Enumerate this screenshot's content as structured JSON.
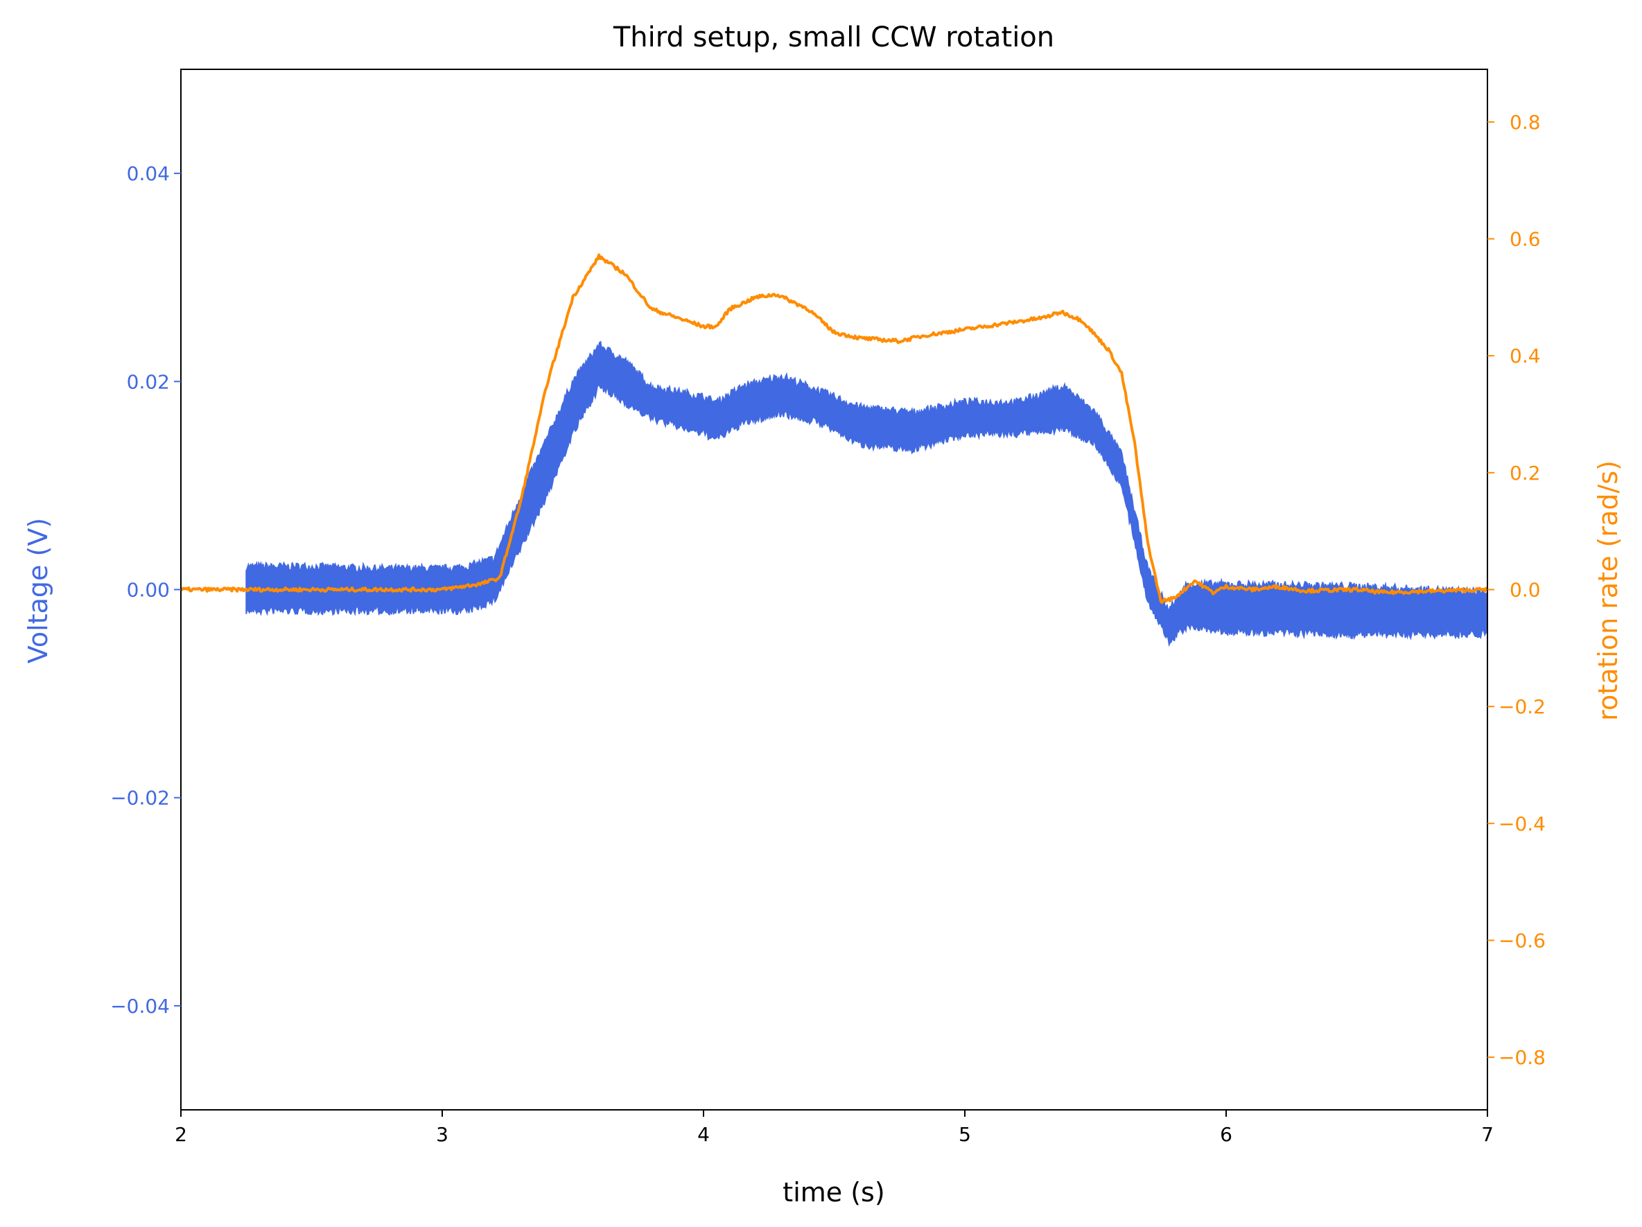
{
  "chart_data": {
    "type": "line",
    "title": "Third setup, small CCW rotation",
    "xlabel": "time (s)",
    "ylabel": "Voltage (V)",
    "ylabel_right": "rotation rate (rad/s)",
    "xlim": [
      2,
      7
    ],
    "ylim": [
      -0.05,
      0.05
    ],
    "ylim_right": [
      -0.89,
      0.89
    ],
    "grid": false,
    "legend": "none",
    "x_ticks": [
      "2",
      "3",
      "4",
      "5",
      "6",
      "7"
    ],
    "x_tick_values": [
      2,
      3,
      4,
      5,
      6,
      7
    ],
    "y_ticks": [
      "0.04",
      "0.02",
      "0.00",
      "−0.02",
      "−0.04"
    ],
    "y_tick_values": [
      0.04,
      0.02,
      0.0,
      -0.02,
      -0.04
    ],
    "y_right_ticks": [
      "0.8",
      "0.6",
      "0.4",
      "0.2",
      "0.0",
      "−0.2",
      "−0.4",
      "−0.6",
      "−0.8"
    ],
    "y_right_tick_values": [
      0.8,
      0.6,
      0.4,
      0.2,
      0.0,
      -0.2,
      -0.4,
      -0.6,
      -0.8
    ],
    "colors": {
      "voltage": "#4169E1",
      "rotation": "#FF8C00",
      "axis": "#000000"
    },
    "series": [
      {
        "name": "Voltage (V)",
        "axis": "left",
        "kind": "band",
        "x": [
          2.25,
          2.5,
          2.75,
          3.0,
          3.1,
          3.2,
          3.3,
          3.4,
          3.5,
          3.6,
          3.7,
          3.8,
          4.0,
          4.05,
          4.15,
          4.3,
          4.45,
          4.6,
          4.8,
          5.0,
          5.2,
          5.38,
          5.5,
          5.6,
          5.7,
          5.78,
          5.85,
          6.0,
          6.5,
          7.0
        ],
        "upper": [
          0.0022,
          0.0022,
          0.002,
          0.002,
          0.0022,
          0.003,
          0.009,
          0.0145,
          0.02,
          0.0235,
          0.022,
          0.0195,
          0.0185,
          0.018,
          0.0195,
          0.0205,
          0.019,
          0.0175,
          0.017,
          0.018,
          0.018,
          0.0195,
          0.017,
          0.013,
          0.002,
          -0.002,
          0.0005,
          0.0005,
          0.0003,
          -0.0003
        ],
        "lower": [
          -0.002,
          -0.002,
          -0.002,
          -0.002,
          -0.002,
          -0.001,
          0.004,
          0.009,
          0.015,
          0.0195,
          0.018,
          0.0165,
          0.015,
          0.0145,
          0.016,
          0.017,
          0.016,
          0.014,
          0.0135,
          0.015,
          0.015,
          0.0155,
          0.014,
          0.01,
          -0.001,
          -0.005,
          -0.0035,
          -0.004,
          -0.0043,
          -0.0042
        ]
      },
      {
        "name": "rotation rate (rad/s)",
        "axis": "right",
        "kind": "line",
        "x": [
          2.0,
          2.5,
          3.0,
          3.15,
          3.22,
          3.3,
          3.4,
          3.5,
          3.6,
          3.7,
          3.8,
          3.9,
          4.0,
          4.05,
          4.1,
          4.2,
          4.28,
          4.4,
          4.5,
          4.6,
          4.75,
          4.85,
          5.0,
          5.15,
          5.3,
          5.37,
          5.45,
          5.55,
          5.6,
          5.65,
          5.7,
          5.75,
          5.8,
          5.88,
          5.95,
          6.0,
          6.1,
          6.2,
          6.3,
          6.5,
          6.6,
          7.0
        ],
        "y": [
          0.0,
          0.0,
          0.0,
          0.01,
          0.02,
          0.15,
          0.35,
          0.5,
          0.57,
          0.54,
          0.48,
          0.465,
          0.45,
          0.45,
          0.48,
          0.5,
          0.505,
          0.48,
          0.44,
          0.43,
          0.425,
          0.435,
          0.445,
          0.455,
          0.465,
          0.475,
          0.46,
          0.41,
          0.37,
          0.25,
          0.08,
          -0.02,
          -0.015,
          0.015,
          -0.005,
          0.005,
          0.0,
          0.005,
          -0.002,
          0.0,
          -0.005,
          0.0
        ]
      }
    ]
  }
}
